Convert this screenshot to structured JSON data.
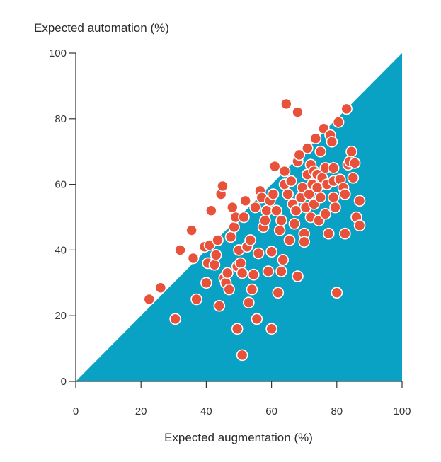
{
  "chart_data": {
    "type": "scatter",
    "title": "",
    "xlabel": "Expected augmentation (%)",
    "ylabel": "Expected automation (%)",
    "xlim": [
      0,
      100
    ],
    "ylim": [
      0,
      100
    ],
    "xticks": [
      "0",
      "20",
      "40",
      "60",
      "80",
      "100"
    ],
    "yticks": [
      "0",
      "20",
      "40",
      "60",
      "80",
      "100"
    ],
    "grid": false,
    "legend": "none",
    "colors": {
      "region": "#0aa2c4",
      "point": "#e8513a",
      "point_edge": "#ffffff"
    },
    "shaded_region": "area below the diagonal y = x",
    "points": [
      [
        22.5,
        25
      ],
      [
        26,
        28.5
      ],
      [
        30.5,
        19
      ],
      [
        32,
        40
      ],
      [
        35.5,
        46
      ],
      [
        36,
        37.5
      ],
      [
        37,
        25
      ],
      [
        39.5,
        41
      ],
      [
        40,
        30
      ],
      [
        40.5,
        36
      ],
      [
        41,
        41.5
      ],
      [
        41.5,
        52
      ],
      [
        42.5,
        35.5
      ],
      [
        43,
        38.5
      ],
      [
        43.5,
        43
      ],
      [
        44,
        23
      ],
      [
        44.5,
        57
      ],
      [
        45,
        59.5
      ],
      [
        45.5,
        31.5
      ],
      [
        46,
        30
      ],
      [
        46.5,
        33
      ],
      [
        47,
        28
      ],
      [
        47.5,
        44
      ],
      [
        48,
        53
      ],
      [
        48.5,
        47
      ],
      [
        49,
        50
      ],
      [
        49.5,
        35
      ],
      [
        49.5,
        16
      ],
      [
        50,
        40
      ],
      [
        50.5,
        36
      ],
      [
        51,
        33
      ],
      [
        51,
        8
      ],
      [
        51.5,
        50
      ],
      [
        52,
        55
      ],
      [
        52.5,
        41
      ],
      [
        53,
        24
      ],
      [
        53.5,
        43
      ],
      [
        54,
        28
      ],
      [
        54.5,
        32.5
      ],
      [
        55,
        53
      ],
      [
        55.5,
        19
      ],
      [
        56,
        39
      ],
      [
        56.5,
        58
      ],
      [
        57,
        56
      ],
      [
        57.5,
        47
      ],
      [
        58,
        49
      ],
      [
        58.5,
        52
      ],
      [
        59,
        33.5
      ],
      [
        59.5,
        55
      ],
      [
        60,
        39.5
      ],
      [
        60,
        16
      ],
      [
        60.5,
        57
      ],
      [
        61,
        65.5
      ],
      [
        61.5,
        52
      ],
      [
        62,
        27
      ],
      [
        62.5,
        46
      ],
      [
        63,
        33.5
      ],
      [
        63,
        49
      ],
      [
        63.5,
        37
      ],
      [
        64,
        60
      ],
      [
        64,
        64
      ],
      [
        64.5,
        84.5
      ],
      [
        65,
        57
      ],
      [
        65.5,
        43
      ],
      [
        66,
        61
      ],
      [
        66.5,
        54
      ],
      [
        67,
        48
      ],
      [
        67.5,
        52
      ],
      [
        68,
        67
      ],
      [
        68,
        32
      ],
      [
        68.5,
        69
      ],
      [
        69,
        56
      ],
      [
        69.5,
        59
      ],
      [
        70,
        45
      ],
      [
        70,
        42.5
      ],
      [
        70.5,
        53
      ],
      [
        71,
        71
      ],
      [
        71,
        63
      ],
      [
        71.5,
        57
      ],
      [
        72,
        66
      ],
      [
        72,
        50
      ],
      [
        72.5,
        60
      ],
      [
        73,
        64
      ],
      [
        73,
        54
      ],
      [
        73.5,
        74
      ],
      [
        74,
        63
      ],
      [
        74,
        59
      ],
      [
        74.5,
        49
      ],
      [
        75,
        70
      ],
      [
        75,
        56
      ],
      [
        75.5,
        62
      ],
      [
        76,
        77
      ],
      [
        76.5,
        65
      ],
      [
        76.5,
        51
      ],
      [
        77,
        60
      ],
      [
        77.5,
        45
      ],
      [
        78,
        75
      ],
      [
        78.5,
        73
      ],
      [
        79,
        65
      ],
      [
        79,
        61
      ],
      [
        79,
        56
      ],
      [
        79.5,
        53
      ],
      [
        80,
        27
      ],
      [
        80.5,
        79
      ],
      [
        81,
        61.5
      ],
      [
        82,
        59
      ],
      [
        82.5,
        57
      ],
      [
        82.5,
        45
      ],
      [
        83,
        83
      ],
      [
        83.5,
        66
      ],
      [
        84,
        67
      ],
      [
        84.5,
        70
      ],
      [
        85,
        62
      ],
      [
        85.5,
        66.5
      ],
      [
        86,
        50
      ],
      [
        87,
        55
      ],
      [
        87,
        47.5
      ],
      [
        68,
        82
      ]
    ]
  }
}
